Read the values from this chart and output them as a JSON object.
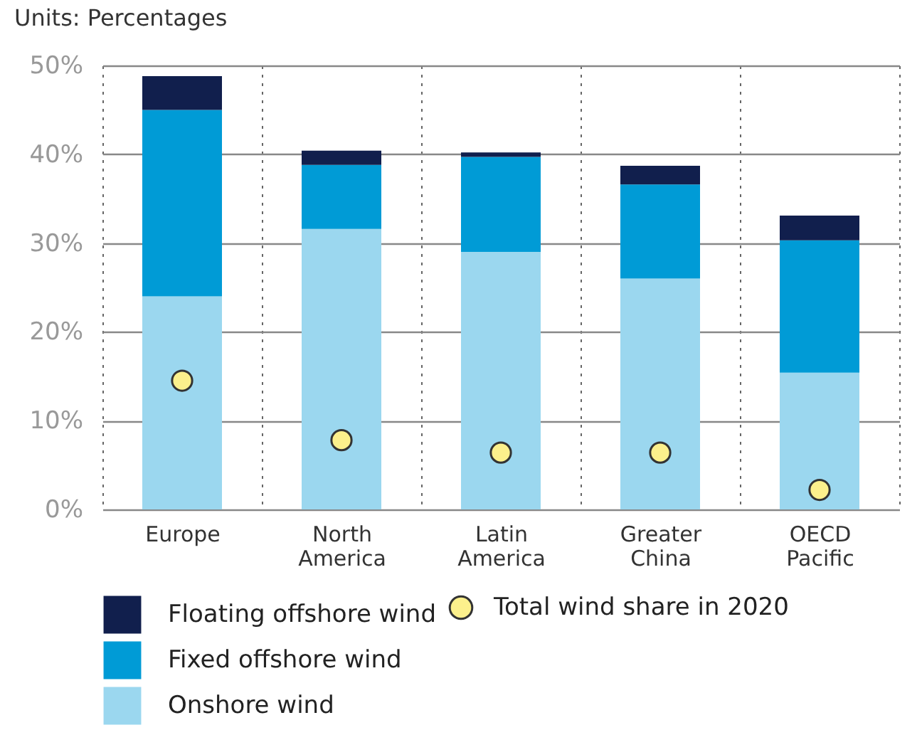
{
  "chart_data": {
    "type": "bar",
    "title": "Units: Percentages",
    "stacked": true,
    "categories": [
      "Europe",
      "North America",
      "Latin America",
      "Greater China",
      "OECD Pacific"
    ],
    "series": [
      {
        "name": "Onshore wind",
        "color": "#9bd7ef",
        "values": [
          24,
          31.6,
          29,
          26,
          15.4
        ]
      },
      {
        "name": "Fixed offshore wind",
        "color": "#009bd6",
        "values": [
          21,
          7.2,
          10.7,
          10.6,
          14.9
        ]
      },
      {
        "name": "Floating offshore wind",
        "color": "#111f4d",
        "values": [
          3.8,
          1.6,
          0.5,
          2.1,
          2.8
        ]
      },
      {
        "name": "Total wind share in 2020",
        "type": "scatter",
        "color": "#fcf08c",
        "marker": "circle",
        "x": [
          "Europe",
          "North America",
          "Latin America",
          "Greater China",
          "OECD Pacific"
        ],
        "values": [
          14.5,
          7.8,
          6.4,
          6.4,
          2.2
        ]
      }
    ],
    "ylim": [
      0,
      50
    ],
    "yticks": [
      {
        "value": 0,
        "label": "0%"
      },
      {
        "value": 10,
        "label": "10%"
      },
      {
        "value": 20,
        "label": "20%"
      },
      {
        "value": 30,
        "label": "30%"
      },
      {
        "value": 40,
        "label": "40%"
      },
      {
        "value": 50,
        "label": "50%"
      }
    ],
    "grid": true,
    "legend": "bottom"
  }
}
